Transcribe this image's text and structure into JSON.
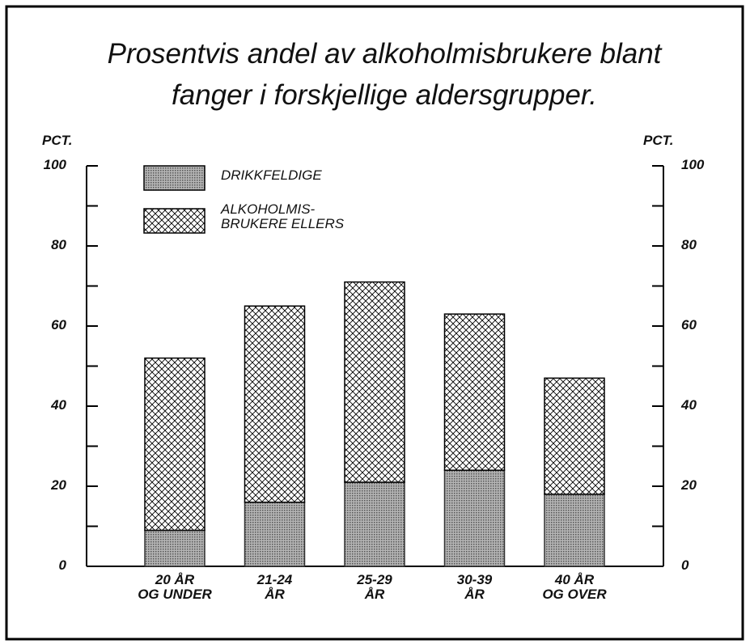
{
  "chart_data": {
    "type": "stacked_bar",
    "title": "Prosentvis andel av alkoholmisbrukere blant\nfanger i forskjellige aldersgrupper.",
    "y_label": "PCT.",
    "y2_label": "PCT.",
    "categories": [
      "20 ÅR\nOG UNDER",
      "21-24\nÅR",
      "25-29\nÅR",
      "30-39\nÅR",
      "40 ÅR\nOG OVER"
    ],
    "series": [
      {
        "name": "DRIKKFELDIGE",
        "color": "#8a8a8a",
        "pattern": "solid",
        "values": [
          9,
          16,
          21,
          24,
          18
        ]
      },
      {
        "name": "ALKOHOLMIS-\nBRUKERE ELLERS",
        "color": "#000000",
        "pattern": "crosshatch",
        "values": [
          43,
          49,
          50,
          39,
          29
        ]
      }
    ],
    "ylim": [
      0,
      100
    ],
    "yticks": [
      0,
      20,
      40,
      60,
      80,
      100
    ],
    "minor_yticks": [
      10,
      30,
      50,
      70,
      90
    ],
    "y2lim": [
      0,
      100
    ],
    "y2ticks": [
      0,
      20,
      40,
      60,
      80,
      100
    ],
    "legend": "upper left"
  }
}
